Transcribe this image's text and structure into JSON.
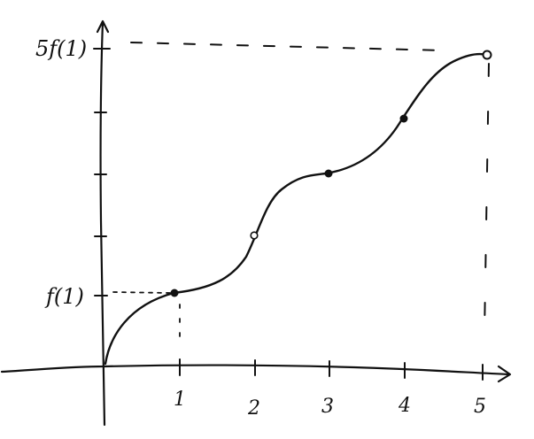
{
  "y_labels": {
    "top": "5f(1)",
    "bottom": "f(1)"
  },
  "x_tick_labels": [
    "1",
    "2",
    "3",
    "4",
    "5"
  ],
  "colors": {
    "ink": "#111111",
    "background": "#ffffff"
  }
}
